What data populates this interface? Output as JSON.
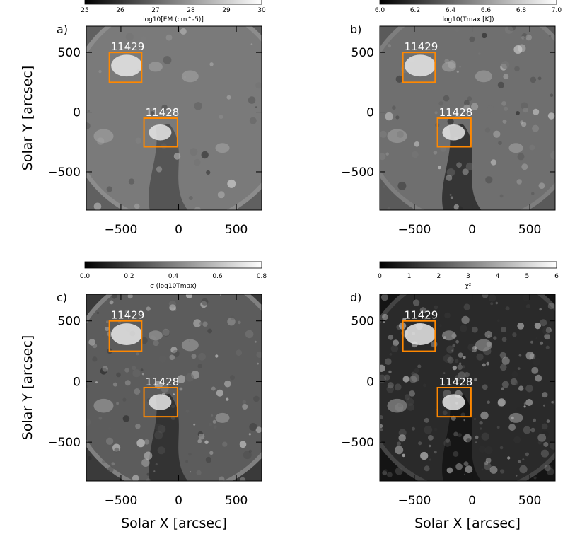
{
  "chart_data": [
    {
      "panel": "a)",
      "type": "heatmap",
      "colorbar": {
        "label": "log10[EM (cm^-5)]",
        "ticks": [
          "25",
          "26",
          "27",
          "28",
          "29",
          "30"
        ],
        "range": [
          25,
          30
        ]
      },
      "xlim": [
        -800,
        720
      ],
      "ylim": [
        -820,
        720
      ],
      "xticks": [
        -500,
        0,
        500
      ],
      "yticks": [
        -500,
        0,
        500
      ],
      "xlabel": "",
      "ylabel": "Solar Y [arcsec]",
      "regions": [
        {
          "label": "11429",
          "x0": -600,
          "x1": -320,
          "y0": 250,
          "y1": 500
        },
        {
          "label": "11428",
          "x0": -300,
          "x1": -10,
          "y0": -290,
          "y1": -50
        }
      ]
    },
    {
      "panel": "b)",
      "type": "heatmap",
      "colorbar": {
        "label": "log10(Tmax [K])",
        "ticks": [
          "6.0",
          "6.2",
          "6.4",
          "6.6",
          "6.8",
          "7.0"
        ],
        "range": [
          6.0,
          7.0
        ]
      },
      "xlim": [
        -800,
        720
      ],
      "ylim": [
        -820,
        720
      ],
      "xticks": [
        -500,
        0,
        500
      ],
      "yticks": [
        -500,
        0,
        500
      ],
      "xlabel": "",
      "ylabel": "",
      "regions": [
        {
          "label": "11429",
          "x0": -600,
          "x1": -320,
          "y0": 250,
          "y1": 500
        },
        {
          "label": "11428",
          "x0": -300,
          "x1": -10,
          "y0": -290,
          "y1": -50
        }
      ]
    },
    {
      "panel": "c)",
      "type": "heatmap",
      "colorbar": {
        "label": "σ (log10Tmax)",
        "ticks": [
          "0.0",
          "0.2",
          "0.4",
          "0.6",
          "0.8"
        ],
        "range": [
          0.0,
          0.8
        ]
      },
      "xlim": [
        -800,
        720
      ],
      "ylim": [
        -820,
        720
      ],
      "xticks": [
        -500,
        0,
        500
      ],
      "yticks": [
        -500,
        0,
        500
      ],
      "xlabel": "Solar X [arcsec]",
      "ylabel": "Solar Y [arcsec]",
      "regions": [
        {
          "label": "11429",
          "x0": -600,
          "x1": -320,
          "y0": 250,
          "y1": 500
        },
        {
          "label": "11428",
          "x0": -300,
          "x1": -10,
          "y0": -290,
          "y1": -50
        }
      ]
    },
    {
      "panel": "d)",
      "type": "heatmap",
      "colorbar": {
        "label": "χ²",
        "ticks": [
          "0",
          "1",
          "2",
          "3",
          "4",
          "5",
          "6"
        ],
        "range": [
          0,
          6
        ]
      },
      "xlim": [
        -800,
        720
      ],
      "ylim": [
        -820,
        720
      ],
      "xticks": [
        -500,
        0,
        500
      ],
      "yticks": [
        -500,
        0,
        500
      ],
      "xlabel": "Solar X [arcsec]",
      "ylabel": "",
      "regions": [
        {
          "label": "11429",
          "x0": -600,
          "x1": -320,
          "y0": 250,
          "y1": 500
        },
        {
          "label": "11428",
          "x0": -300,
          "x1": -10,
          "y0": -290,
          "y1": -50
        }
      ]
    }
  ],
  "colors": {
    "region_box": "#ff8800",
    "region_label": "#ffffff"
  }
}
